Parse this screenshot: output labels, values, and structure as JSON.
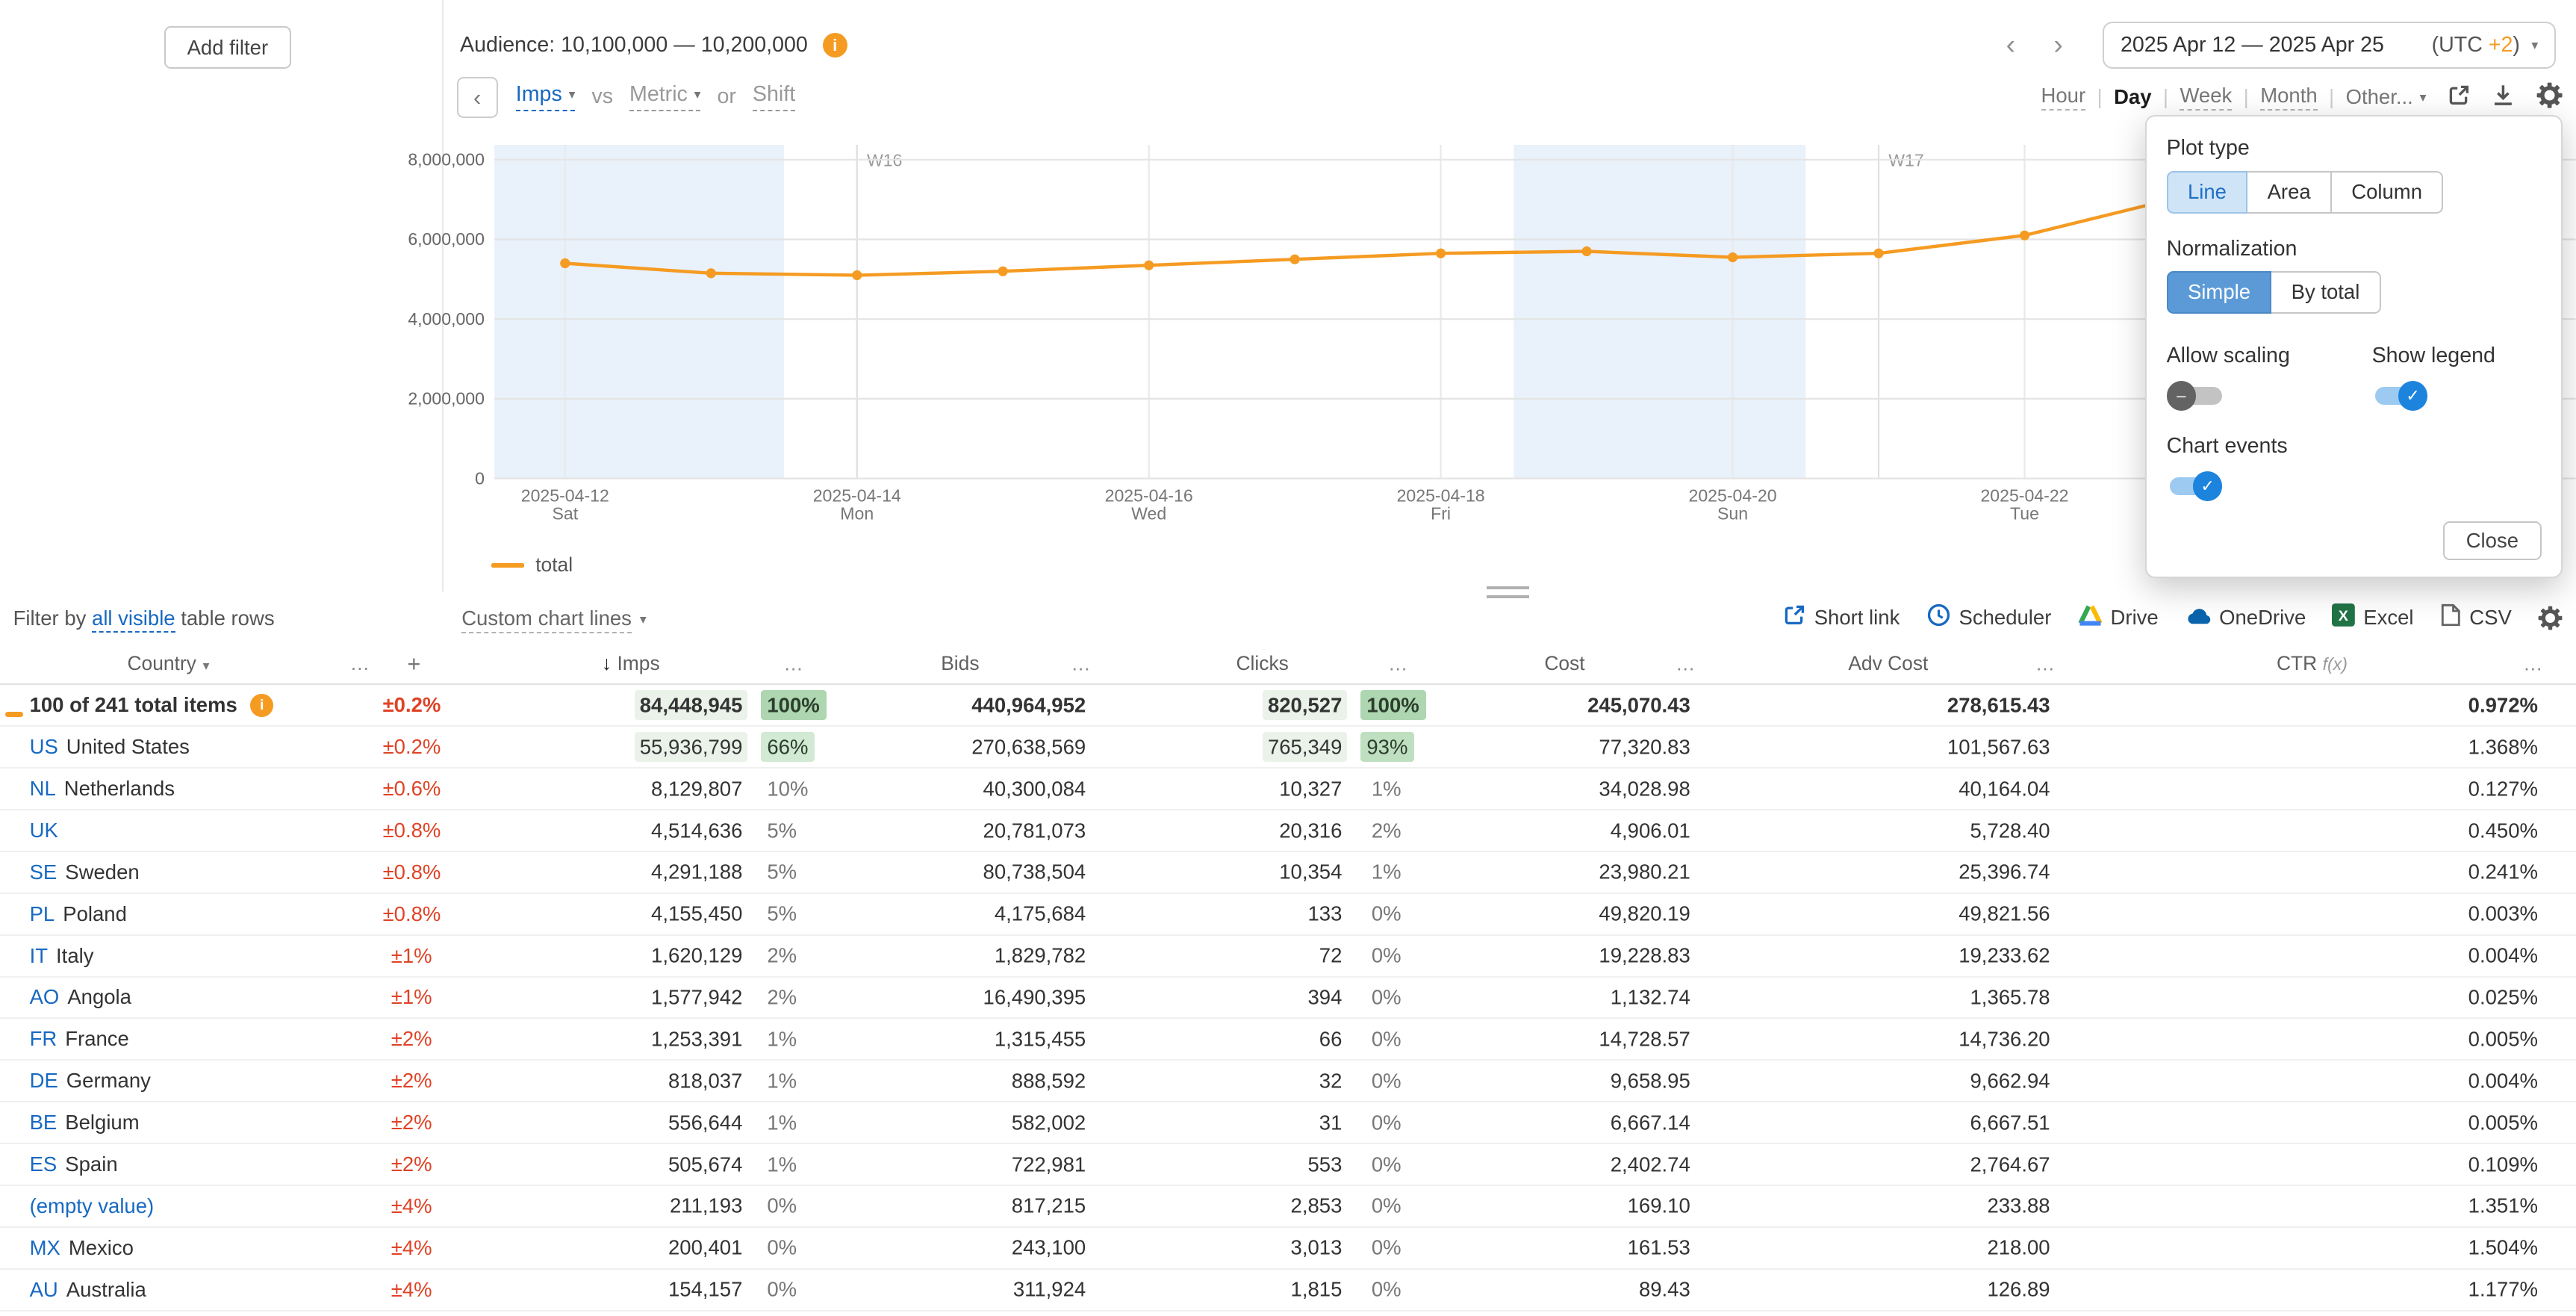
{
  "colors": {
    "accent_orange": "#f59b22",
    "link_blue": "#1769c2",
    "delta_red": "#e04326",
    "weekend_band": "#e9f1fa",
    "toggle_on_blue": "#1d84dd",
    "highlight_green_strong": "#aed6b0",
    "highlight_green_mid": "#bfdfc1",
    "highlight_green_soft": "#d2e9d3"
  },
  "glyphs": {
    "info": "i",
    "chevron_down": "▾",
    "prev": "‹",
    "next": "›",
    "back": "‹",
    "ellipsis": "…",
    "toggle_on": "✓",
    "toggle_off": "–"
  },
  "topbar": {
    "add_filter_label": "Add filter",
    "audience_label": "Audience: 10,100,000 — 10,200,000",
    "date_range": "2025 Apr 12 — 2025 Apr 25",
    "utc_prefix": "(UTC",
    "utc_offset": "+2",
    "utc_suffix": ")"
  },
  "chart_toolbar": {
    "primary_metric": "Imps",
    "vs_label": "vs",
    "secondary_metric": "Metric",
    "or_label": "or",
    "shift_label": "Shift",
    "granularity": {
      "hour": "Hour",
      "day": "Day",
      "week": "Week",
      "month": "Month",
      "other": "Other...",
      "selected": "Day",
      "separator": "|"
    }
  },
  "chart_data": {
    "type": "line",
    "title": "",
    "xlabel": "",
    "ylabel": "",
    "ylim": [
      0,
      8370000
    ],
    "yticks": [
      0,
      2000000,
      4000000,
      6000000,
      8000000
    ],
    "grid": true,
    "legend_position": "bottom-left",
    "band_color": "#e9f1fa",
    "series": [
      {
        "name": "total",
        "color": "#f59b22",
        "x": [
          "2025-04-12",
          "2025-04-13",
          "2025-04-14",
          "2025-04-15",
          "2025-04-16",
          "2025-04-17",
          "2025-04-18",
          "2025-04-19",
          "2025-04-20",
          "2025-04-21",
          "2025-04-22",
          "2025-04-23",
          "2025-04-24",
          "2025-04-25"
        ],
        "values": [
          5400000,
          5150000,
          5100000,
          5200000,
          5350000,
          5500000,
          5650000,
          5700000,
          5550000,
          5650000,
          6100000,
          7000000,
          7900000,
          8400000
        ]
      }
    ],
    "xticks": [
      {
        "date": "2025-04-12",
        "weekday": "Sat"
      },
      {
        "date": "2025-04-14",
        "weekday": "Mon"
      },
      {
        "date": "2025-04-16",
        "weekday": "Wed"
      },
      {
        "date": "2025-04-18",
        "weekday": "Fri"
      },
      {
        "date": "2025-04-20",
        "weekday": "Sun"
      },
      {
        "date": "2025-04-22",
        "weekday": "Tue"
      }
    ],
    "week_markers": [
      {
        "label": "W16",
        "date": "2025-04-14"
      },
      {
        "label": "W17",
        "date": "2025-04-21"
      }
    ],
    "weekend_bands": [
      [
        "2025-04-12",
        "2025-04-13"
      ],
      [
        "2025-04-19",
        "2025-04-20"
      ]
    ]
  },
  "settings_popover": {
    "plot_type_label": "Plot type",
    "plot_types": [
      "Line",
      "Area",
      "Column"
    ],
    "plot_type_selected": "Line",
    "normalization_label": "Normalization",
    "normalizations": [
      "Simple",
      "By total"
    ],
    "normalization_selected": "Simple",
    "allow_scaling_label": "Allow scaling",
    "allow_scaling_on": false,
    "show_legend_label": "Show legend",
    "show_legend_on": true,
    "chart_events_label": "Chart events",
    "chart_events_on": true,
    "close_label": "Close"
  },
  "table_toolbar": {
    "filter_by": "Filter by",
    "all_visible_link": "all visible",
    "table_rows": "table rows",
    "custom_chart_lines": "Custom chart lines",
    "short_link": "Short link",
    "scheduler": "Scheduler",
    "drive": "Drive",
    "onedrive": "OneDrive",
    "excel": "Excel",
    "csv": "CSV"
  },
  "table": {
    "headers": {
      "country": "Country",
      "menu": "…",
      "add": "+",
      "sort_arrow": "↓",
      "imps": "Imps",
      "bids": "Bids",
      "clicks": "Clicks",
      "cost": "Cost",
      "adv_cost": "Adv Cost",
      "ctr": "CTR",
      "ctr_fx": "f(x)"
    },
    "rows": [
      {
        "code": "",
        "name": "100 of 241 total items",
        "total": true,
        "info": true,
        "swatch": true,
        "pm": "±0.2%",
        "imps": "84,448,945",
        "imps_pct": "100%",
        "imps_hl": "strong",
        "imps_val_hl": true,
        "bids": "440,964,952",
        "clicks": "820,527",
        "clicks_pct": "100%",
        "clicks_hl": "strong",
        "clicks_val_hl": true,
        "cost": "245,070.43",
        "adv_cost": "278,615.43",
        "ctr": "0.972%"
      },
      {
        "code": "US",
        "name": "United States",
        "pm": "±0.2%",
        "imps": "55,936,799",
        "imps_pct": "66%",
        "imps_hl": "soft",
        "imps_val_hl": true,
        "bids": "270,638,569",
        "clicks": "765,349",
        "clicks_pct": "93%",
        "clicks_hl": "mid",
        "clicks_val_hl": true,
        "cost": "77,320.83",
        "adv_cost": "101,567.63",
        "ctr": "1.368%"
      },
      {
        "code": "NL",
        "name": "Netherlands",
        "pm": "±0.6%",
        "imps": "8,129,807",
        "imps_pct": "10%",
        "bids": "40,300,084",
        "clicks": "10,327",
        "clicks_pct": "1%",
        "cost": "34,028.98",
        "adv_cost": "40,164.04",
        "ctr": "0.127%"
      },
      {
        "code": "UK",
        "name": "",
        "pm": "±0.8%",
        "imps": "4,514,636",
        "imps_pct": "5%",
        "bids": "20,781,073",
        "clicks": "20,316",
        "clicks_pct": "2%",
        "cost": "4,906.01",
        "adv_cost": "5,728.40",
        "ctr": "0.450%"
      },
      {
        "code": "SE",
        "name": "Sweden",
        "pm": "±0.8%",
        "imps": "4,291,188",
        "imps_pct": "5%",
        "bids": "80,738,504",
        "clicks": "10,354",
        "clicks_pct": "1%",
        "cost": "23,980.21",
        "adv_cost": "25,396.74",
        "ctr": "0.241%"
      },
      {
        "code": "PL",
        "name": "Poland",
        "pm": "±0.8%",
        "imps": "4,155,450",
        "imps_pct": "5%",
        "bids": "4,175,684",
        "clicks": "133",
        "clicks_pct": "0%",
        "cost": "49,820.19",
        "adv_cost": "49,821.56",
        "ctr": "0.003%"
      },
      {
        "code": "IT",
        "name": "Italy",
        "pm": "±1%",
        "imps": "1,620,129",
        "imps_pct": "2%",
        "bids": "1,829,782",
        "clicks": "72",
        "clicks_pct": "0%",
        "cost": "19,228.83",
        "adv_cost": "19,233.62",
        "ctr": "0.004%"
      },
      {
        "code": "AO",
        "name": "Angola",
        "pm": "±1%",
        "imps": "1,577,942",
        "imps_pct": "2%",
        "bids": "16,490,395",
        "clicks": "394",
        "clicks_pct": "0%",
        "cost": "1,132.74",
        "adv_cost": "1,365.78",
        "ctr": "0.025%"
      },
      {
        "code": "FR",
        "name": "France",
        "pm": "±2%",
        "imps": "1,253,391",
        "imps_pct": "1%",
        "bids": "1,315,455",
        "clicks": "66",
        "clicks_pct": "0%",
        "cost": "14,728.57",
        "adv_cost": "14,736.20",
        "ctr": "0.005%"
      },
      {
        "code": "DE",
        "name": "Germany",
        "pm": "±2%",
        "imps": "818,037",
        "imps_pct": "1%",
        "bids": "888,592",
        "clicks": "32",
        "clicks_pct": "0%",
        "cost": "9,658.95",
        "adv_cost": "9,662.94",
        "ctr": "0.004%"
      },
      {
        "code": "BE",
        "name": "Belgium",
        "pm": "±2%",
        "imps": "556,644",
        "imps_pct": "1%",
        "bids": "582,002",
        "clicks": "31",
        "clicks_pct": "0%",
        "cost": "6,667.14",
        "adv_cost": "6,667.51",
        "ctr": "0.005%"
      },
      {
        "code": "ES",
        "name": "Spain",
        "pm": "±2%",
        "imps": "505,674",
        "imps_pct": "1%",
        "bids": "722,981",
        "clicks": "553",
        "clicks_pct": "0%",
        "cost": "2,402.74",
        "adv_cost": "2,764.67",
        "ctr": "0.109%"
      },
      {
        "code": "",
        "name": "(empty value)",
        "empty": true,
        "pm": "±4%",
        "imps": "211,193",
        "imps_pct": "0%",
        "bids": "817,215",
        "clicks": "2,853",
        "clicks_pct": "0%",
        "cost": "169.10",
        "adv_cost": "233.88",
        "ctr": "1.351%"
      },
      {
        "code": "MX",
        "name": "Mexico",
        "pm": "±4%",
        "imps": "200,401",
        "imps_pct": "0%",
        "bids": "243,100",
        "clicks": "3,013",
        "clicks_pct": "0%",
        "cost": "161.53",
        "adv_cost": "218.00",
        "ctr": "1.504%"
      },
      {
        "code": "AU",
        "name": "Australia",
        "pm": "±4%",
        "imps": "154,157",
        "imps_pct": "0%",
        "bids": "311,924",
        "clicks": "1,815",
        "clicks_pct": "0%",
        "cost": "89.43",
        "adv_cost": "126.89",
        "ctr": "1.177%"
      }
    ]
  }
}
